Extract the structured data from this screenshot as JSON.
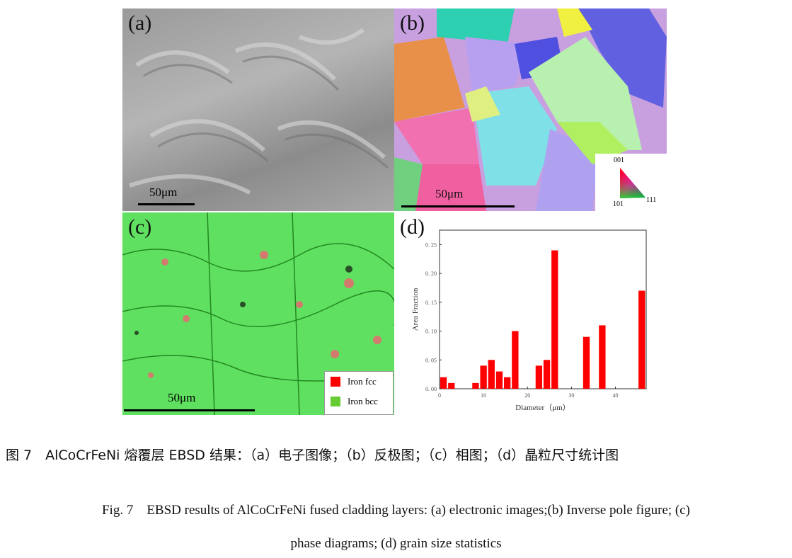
{
  "panels": {
    "a": {
      "label": "(a)",
      "scale": "50μm"
    },
    "b": {
      "label": "(b)",
      "scale": "50μm",
      "ipf_key": {
        "top": "001",
        "left": "101",
        "right": "111"
      }
    },
    "c": {
      "label": "(c)",
      "scale": "50μm",
      "legend": [
        {
          "name": "Iron fcc",
          "color": "#ff0000"
        },
        {
          "name": "Iron bcc",
          "color": "#66cc33"
        }
      ]
    },
    "d": {
      "label": "(d)"
    }
  },
  "chart_data": {
    "type": "bar",
    "xlabel": "Diameter（μm）",
    "ylabel": "Area Fraction",
    "xlim": [
      0,
      47
    ],
    "ylim": [
      0,
      0.275
    ],
    "xticks": [
      "0",
      "10",
      "20",
      "30",
      "40"
    ],
    "yticks": [
      "0.00",
      "0.05",
      "0.10",
      "0.15",
      "0.20",
      "0.25"
    ],
    "bar_color": "#ff0000",
    "x": [
      0.9,
      2.7,
      8.2,
      10.0,
      11.8,
      13.6,
      15.4,
      17.2,
      22.6,
      24.4,
      26.2,
      33.4,
      37.0,
      46.0
    ],
    "values": [
      0.02,
      0.01,
      0.01,
      0.04,
      0.05,
      0.03,
      0.02,
      0.1,
      0.04,
      0.05,
      0.24,
      0.09,
      0.11,
      0.17
    ]
  },
  "caption_cn": "图 7　AlCoCrFeNi 熔覆层 EBSD 结果：（a）电子图像；（b）反极图；（c）相图；（d）晶粒尺寸统计图",
  "caption_en_line1": "Fig. 7　EBSD results of AlCoCrFeNi fused cladding layers: (a) electronic images;(b) Inverse pole figure; (c)",
  "caption_en_line2": "phase diagrams; (d) grain size statistics"
}
